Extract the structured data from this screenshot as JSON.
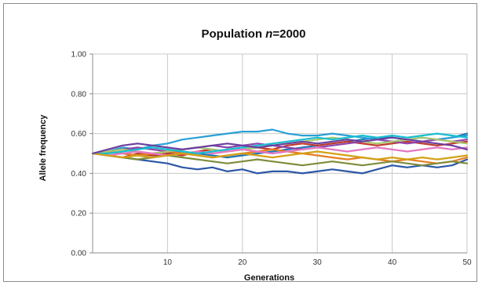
{
  "chart_data": {
    "type": "line",
    "title_prefix": "Population ",
    "title_var": "n",
    "title_suffix": "=2000",
    "xlabel": "Generations",
    "ylabel": "Allele frequency",
    "xlim": [
      0,
      50
    ],
    "ylim": [
      0,
      1
    ],
    "x_ticks": [
      10,
      20,
      30,
      40,
      50
    ],
    "y_ticks": [
      "0.00",
      "0.20",
      "0.40",
      "0.60",
      "0.80",
      "1.00"
    ],
    "grid": true,
    "legend": "none",
    "x": [
      0,
      2,
      4,
      6,
      8,
      10,
      12,
      14,
      16,
      18,
      20,
      22,
      24,
      26,
      28,
      30,
      32,
      34,
      36,
      38,
      40,
      42,
      44,
      46,
      48,
      50
    ],
    "series": [
      {
        "color": "#1f77b4",
        "values": [
          0.5,
          0.51,
          0.5,
          0.49,
          0.48,
          0.5,
          0.51,
          0.5,
          0.49,
          0.48,
          0.49,
          0.5,
          0.51,
          0.52,
          0.53,
          0.54,
          0.55,
          0.56,
          0.57,
          0.58,
          0.58,
          0.57,
          0.56,
          0.57,
          0.58,
          0.6
        ]
      },
      {
        "color": "#2a9fd6",
        "values": [
          0.5,
          0.51,
          0.53,
          0.52,
          0.54,
          0.55,
          0.57,
          0.58,
          0.59,
          0.6,
          0.61,
          0.61,
          0.62,
          0.6,
          0.59,
          0.59,
          0.6,
          0.59,
          0.58,
          0.57,
          0.56,
          0.57,
          0.58,
          0.57,
          0.58,
          0.59
        ]
      },
      {
        "color": "#2b57a5",
        "values": [
          0.5,
          0.49,
          0.48,
          0.47,
          0.46,
          0.45,
          0.43,
          0.42,
          0.43,
          0.41,
          0.42,
          0.4,
          0.41,
          0.41,
          0.4,
          0.41,
          0.42,
          0.41,
          0.4,
          0.42,
          0.44,
          0.43,
          0.44,
          0.43,
          0.44,
          0.47
        ]
      },
      {
        "color": "#c0392b",
        "values": [
          0.5,
          0.49,
          0.48,
          0.5,
          0.49,
          0.5,
          0.49,
          0.51,
          0.52,
          0.51,
          0.52,
          0.53,
          0.52,
          0.54,
          0.55,
          0.54,
          0.55,
          0.56,
          0.55,
          0.54,
          0.55,
          0.56,
          0.55,
          0.54,
          0.55,
          0.56
        ]
      },
      {
        "color": "#e67e22",
        "values": [
          0.5,
          0.51,
          0.5,
          0.49,
          0.5,
          0.51,
          0.5,
          0.49,
          0.48,
          0.49,
          0.5,
          0.51,
          0.52,
          0.51,
          0.5,
          0.49,
          0.48,
          0.47,
          0.48,
          0.47,
          0.46,
          0.47,
          0.46,
          0.45,
          0.46,
          0.48
        ]
      },
      {
        "color": "#8e44ad",
        "values": [
          0.5,
          0.51,
          0.52,
          0.53,
          0.52,
          0.51,
          0.52,
          0.53,
          0.54,
          0.53,
          0.54,
          0.55,
          0.54,
          0.53,
          0.52,
          0.53,
          0.54,
          0.55,
          0.56,
          0.57,
          0.56,
          0.55,
          0.56,
          0.57,
          0.56,
          0.57
        ]
      },
      {
        "color": "#7f8c3a",
        "values": [
          0.5,
          0.49,
          0.48,
          0.47,
          0.48,
          0.49,
          0.48,
          0.47,
          0.46,
          0.45,
          0.46,
          0.47,
          0.46,
          0.45,
          0.44,
          0.45,
          0.46,
          0.45,
          0.44,
          0.45,
          0.46,
          0.45,
          0.44,
          0.45,
          0.46,
          0.45
        ]
      },
      {
        "color": "#a8c66c",
        "values": [
          0.5,
          0.51,
          0.52,
          0.51,
          0.5,
          0.51,
          0.52,
          0.53,
          0.52,
          0.51,
          0.52,
          0.53,
          0.54,
          0.55,
          0.56,
          0.57,
          0.58,
          0.57,
          0.56,
          0.55,
          0.56,
          0.57,
          0.58,
          0.57,
          0.56,
          0.55
        ]
      },
      {
        "color": "#e377c2",
        "values": [
          0.5,
          0.49,
          0.5,
          0.51,
          0.5,
          0.49,
          0.5,
          0.51,
          0.5,
          0.51,
          0.52,
          0.51,
          0.5,
          0.51,
          0.52,
          0.53,
          0.52,
          0.51,
          0.52,
          0.53,
          0.52,
          0.51,
          0.52,
          0.53,
          0.52,
          0.53
        ]
      },
      {
        "color": "#17becf",
        "values": [
          0.5,
          0.5,
          0.51,
          0.52,
          0.53,
          0.52,
          0.51,
          0.5,
          0.51,
          0.52,
          0.53,
          0.54,
          0.55,
          0.56,
          0.57,
          0.58,
          0.57,
          0.58,
          0.59,
          0.58,
          0.59,
          0.58,
          0.59,
          0.6,
          0.59,
          0.58
        ]
      },
      {
        "color": "#d4a017",
        "values": [
          0.5,
          0.49,
          0.48,
          0.49,
          0.48,
          0.49,
          0.5,
          0.49,
          0.48,
          0.49,
          0.5,
          0.49,
          0.48,
          0.49,
          0.5,
          0.51,
          0.5,
          0.49,
          0.48,
          0.47,
          0.48,
          0.47,
          0.48,
          0.47,
          0.48,
          0.49
        ]
      },
      {
        "color": "#6b3fa0",
        "values": [
          0.5,
          0.52,
          0.54,
          0.55,
          0.54,
          0.53,
          0.52,
          0.53,
          0.54,
          0.55,
          0.54,
          0.53,
          0.54,
          0.55,
          0.56,
          0.55,
          0.56,
          0.57,
          0.56,
          0.57,
          0.58,
          0.57,
          0.56,
          0.55,
          0.54,
          0.52
        ]
      }
    ]
  }
}
